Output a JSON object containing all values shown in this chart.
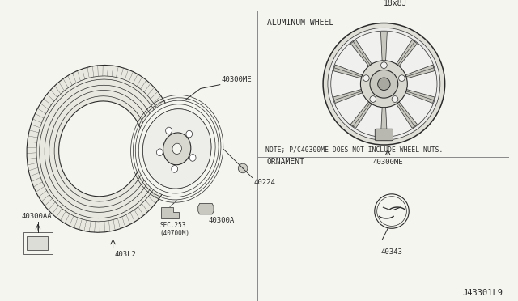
{
  "bg_color": "#f5f5f0",
  "line_color": "#2a2a2a",
  "title_diagram_id": "J43301L9",
  "left_section": {
    "tire_label": "403L2",
    "wheel_label": "40300ME",
    "valve_label": "40224",
    "sensor_label": "SEC.253\n(40700M)",
    "nut_label": "40300A",
    "sticker_label": "40300AA"
  },
  "right_section": {
    "top_label": "ALUMINUM WHEEL",
    "wheel_size": "18x8J",
    "wheel_label": "40300ME",
    "note_text": "NOTE; P/C40300ME DOES NOT INCLUDE WHEEL NUTS.",
    "ornament_label": "ORNAMENT",
    "ornament_part": "40343"
  }
}
